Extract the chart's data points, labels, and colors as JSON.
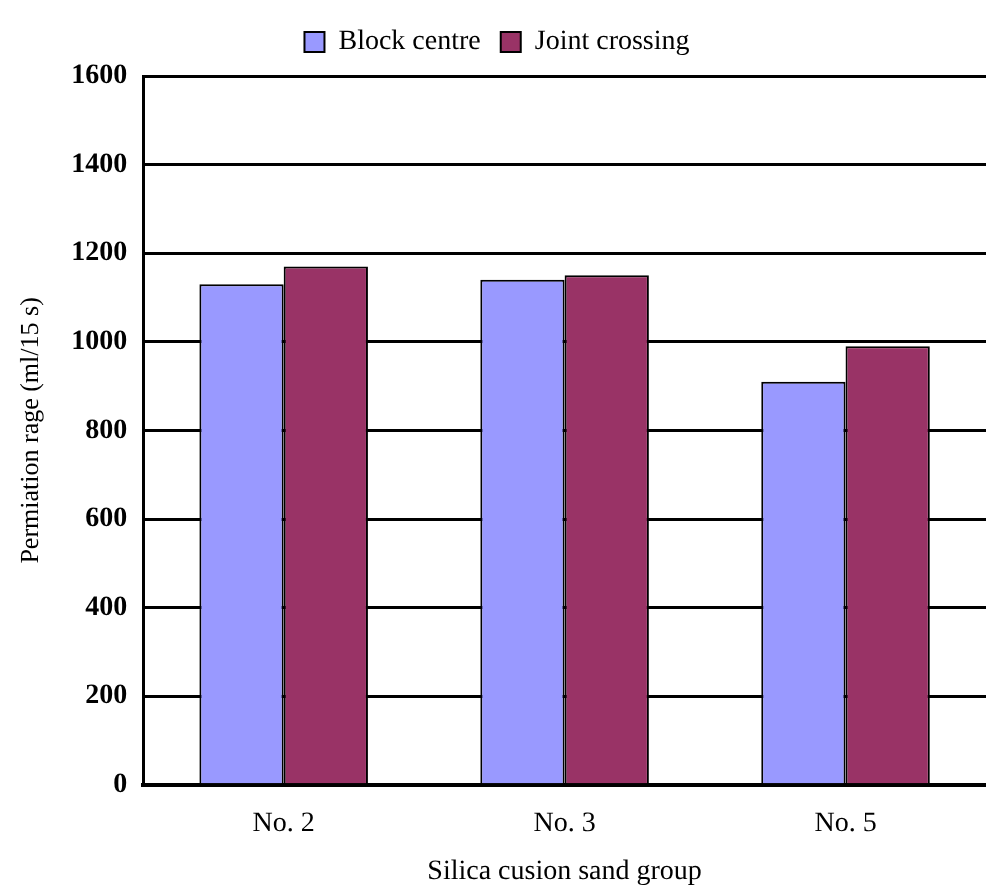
{
  "chart_data": {
    "type": "bar",
    "xlabel": "Silica cusion sand group",
    "ylabel": "Permiation rage (ml/15 s)",
    "categories": [
      "No. 2",
      "No. 3",
      "No. 5"
    ],
    "series": [
      {
        "name": "Block centre",
        "color": "#9999ff",
        "values": [
          1130,
          1140,
          910
        ]
      },
      {
        "name": "Joint crossing",
        "color": "#993366",
        "values": [
          1170,
          1150,
          990
        ]
      }
    ],
    "ylim": [
      0,
      1600
    ],
    "yticks": [
      0,
      200,
      400,
      600,
      800,
      1000,
      1200,
      1400,
      1600
    ],
    "grid": "y",
    "legend": "top"
  }
}
